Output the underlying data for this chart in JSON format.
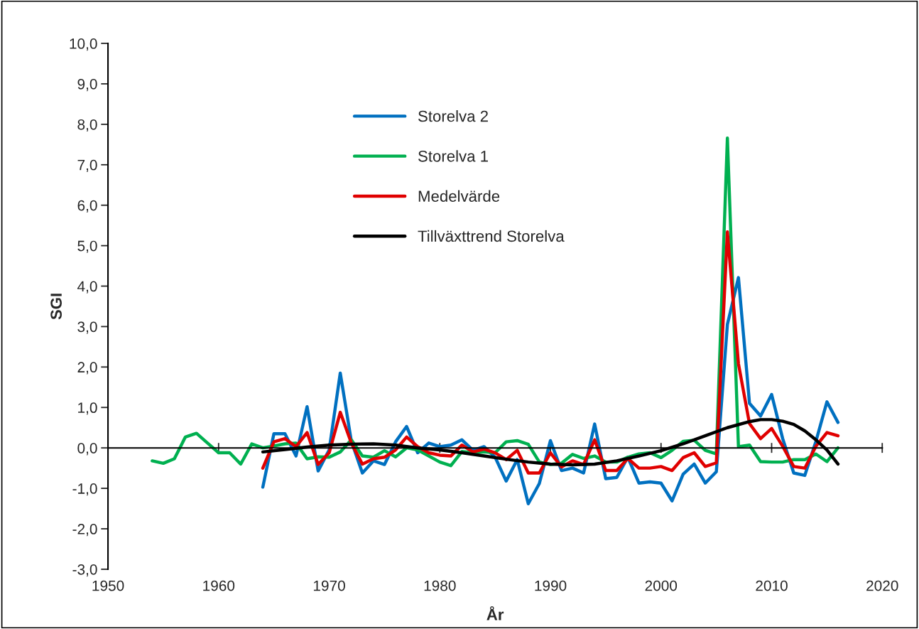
{
  "chart_data": {
    "type": "line",
    "xlabel": "År",
    "ylabel": "SGI",
    "xlim": [
      1950,
      2020
    ],
    "xticks": [
      1950,
      1960,
      1970,
      1980,
      1990,
      2000,
      2010,
      2020
    ],
    "ylim": [
      -3,
      10
    ],
    "yticks": [
      {
        "value": -3,
        "label": "-3,0"
      },
      {
        "value": -2,
        "label": "-2,0"
      },
      {
        "value": -1,
        "label": "-1,0"
      },
      {
        "value": 0,
        "label": "0,0"
      },
      {
        "value": 1,
        "label": "1,0"
      },
      {
        "value": 2,
        "label": "2,0"
      },
      {
        "value": 3,
        "label": "3,0"
      },
      {
        "value": 4,
        "label": "4,0"
      },
      {
        "value": 5,
        "label": "5,0"
      },
      {
        "value": 6,
        "label": "6,0"
      },
      {
        "value": 7,
        "label": "7,0"
      },
      {
        "value": 8,
        "label": "8,0"
      },
      {
        "value": 9,
        "label": "9,0"
      },
      {
        "value": 10,
        "label": "10,0"
      }
    ],
    "legend": "top left",
    "marker": "none",
    "line_style": "solid",
    "series": [
      {
        "name": "Storelva 2",
        "color": "#0070c0",
        "x": [
          1964,
          1965,
          1966,
          1967,
          1968,
          1969,
          1970,
          1971,
          1972,
          1973,
          1974,
          1975,
          1976,
          1977,
          1978,
          1979,
          1980,
          1981,
          1982,
          1983,
          1984,
          1985,
          1986,
          1987,
          1988,
          1989,
          1990,
          1991,
          1992,
          1993,
          1994,
          1995,
          1996,
          1997,
          1998,
          1999,
          2000,
          2001,
          2002,
          2003,
          2004,
          2005,
          2006,
          2007,
          2008,
          2009,
          2010,
          2011,
          2012,
          2013,
          2014,
          2015,
          2016
        ],
        "values": [
          -0.97,
          0.35,
          0.35,
          -0.2,
          1.02,
          -0.57,
          -0.05,
          1.85,
          0.17,
          -0.62,
          -0.32,
          -0.41,
          0.15,
          0.53,
          -0.12,
          0.12,
          0.03,
          0.07,
          0.2,
          -0.06,
          0.03,
          -0.23,
          -0.82,
          -0.29,
          -1.38,
          -0.88,
          0.18,
          -0.56,
          -0.5,
          -0.62,
          0.59,
          -0.76,
          -0.73,
          -0.23,
          -0.87,
          -0.84,
          -0.87,
          -1.31,
          -0.65,
          -0.4,
          -0.87,
          -0.59,
          3.05,
          4.21,
          1.1,
          0.79,
          1.32,
          0.23,
          -0.62,
          -0.68,
          0.16,
          1.14,
          0.63
        ]
      },
      {
        "name": "Storelva 1",
        "color": "#00b050",
        "x": [
          1954,
          1955,
          1956,
          1957,
          1958,
          1959,
          1960,
          1961,
          1962,
          1963,
          1964,
          1965,
          1966,
          1967,
          1968,
          1969,
          1970,
          1971,
          1972,
          1973,
          1974,
          1975,
          1976,
          1977,
          1978,
          1979,
          1980,
          1981,
          1982,
          1983,
          1984,
          1985,
          1986,
          1987,
          1988,
          1989,
          1990,
          1991,
          1992,
          1993,
          1994,
          1995,
          1996,
          1997,
          1998,
          1999,
          2000,
          2001,
          2002,
          2003,
          2004,
          2005,
          2006,
          2007,
          2008,
          2009,
          2010,
          2011,
          2012,
          2013,
          2014,
          2015,
          2016
        ],
        "values": [
          -0.32,
          -0.38,
          -0.27,
          0.27,
          0.36,
          0.12,
          -0.12,
          -0.12,
          -0.4,
          0.1,
          0.0,
          0.05,
          0.1,
          0.12,
          -0.27,
          -0.22,
          -0.23,
          -0.1,
          0.2,
          -0.2,
          -0.23,
          -0.07,
          -0.22,
          0.0,
          -0.05,
          -0.2,
          -0.35,
          -0.44,
          -0.09,
          -0.12,
          -0.1,
          -0.12,
          0.15,
          0.18,
          0.09,
          -0.35,
          -0.41,
          -0.38,
          -0.16,
          -0.26,
          -0.2,
          -0.35,
          -0.35,
          -0.23,
          -0.15,
          -0.12,
          -0.24,
          -0.06,
          0.16,
          0.19,
          -0.06,
          -0.15,
          7.66,
          0.03,
          0.07,
          -0.34,
          -0.35,
          -0.35,
          -0.29,
          -0.29,
          -0.15,
          -0.34,
          0.0
        ]
      },
      {
        "name": "Medelvärde",
        "color": "#e00000",
        "x": [
          1964,
          1965,
          1966,
          1967,
          1968,
          1969,
          1970,
          1971,
          1972,
          1973,
          1974,
          1975,
          1976,
          1977,
          1978,
          1979,
          1980,
          1981,
          1982,
          1983,
          1984,
          1985,
          1986,
          1987,
          1988,
          1989,
          1990,
          1991,
          1992,
          1993,
          1994,
          1995,
          1996,
          1997,
          1998,
          1999,
          2000,
          2001,
          2002,
          2003,
          2004,
          2005,
          2006,
          2007,
          2008,
          2009,
          2010,
          2011,
          2012,
          2013,
          2014,
          2015,
          2016
        ],
        "values": [
          -0.5,
          0.15,
          0.23,
          0.03,
          0.38,
          -0.41,
          -0.12,
          0.88,
          0.12,
          -0.4,
          -0.27,
          -0.23,
          -0.05,
          0.27,
          0.03,
          -0.12,
          -0.18,
          -0.2,
          0.07,
          -0.1,
          -0.03,
          -0.12,
          -0.29,
          -0.06,
          -0.62,
          -0.62,
          -0.12,
          -0.47,
          -0.32,
          -0.41,
          0.2,
          -0.56,
          -0.56,
          -0.26,
          -0.5,
          -0.5,
          -0.46,
          -0.56,
          -0.24,
          -0.12,
          -0.46,
          -0.37,
          5.34,
          2.08,
          0.6,
          0.23,
          0.48,
          0.04,
          -0.46,
          -0.5,
          0.04,
          0.38,
          0.3
        ]
      },
      {
        "name": "Tillväxttrend Storelva",
        "color": "#000000",
        "x": [
          1964,
          1966,
          1968,
          1970,
          1972,
          1974,
          1976,
          1978,
          1980,
          1982,
          1984,
          1986,
          1988,
          1990,
          1992,
          1994,
          1996,
          1998,
          2000,
          2002,
          2004,
          2006,
          2008,
          2009,
          2010,
          2011,
          2012,
          2013,
          2014,
          2015,
          2016
        ],
        "values": [
          -0.1,
          -0.04,
          0.02,
          0.07,
          0.09,
          0.1,
          0.07,
          0.0,
          -0.05,
          -0.12,
          -0.2,
          -0.28,
          -0.35,
          -0.4,
          -0.42,
          -0.4,
          -0.32,
          -0.2,
          -0.07,
          0.1,
          0.3,
          0.5,
          0.65,
          0.7,
          0.7,
          0.66,
          0.58,
          0.42,
          0.2,
          -0.05,
          -0.4
        ]
      }
    ]
  }
}
